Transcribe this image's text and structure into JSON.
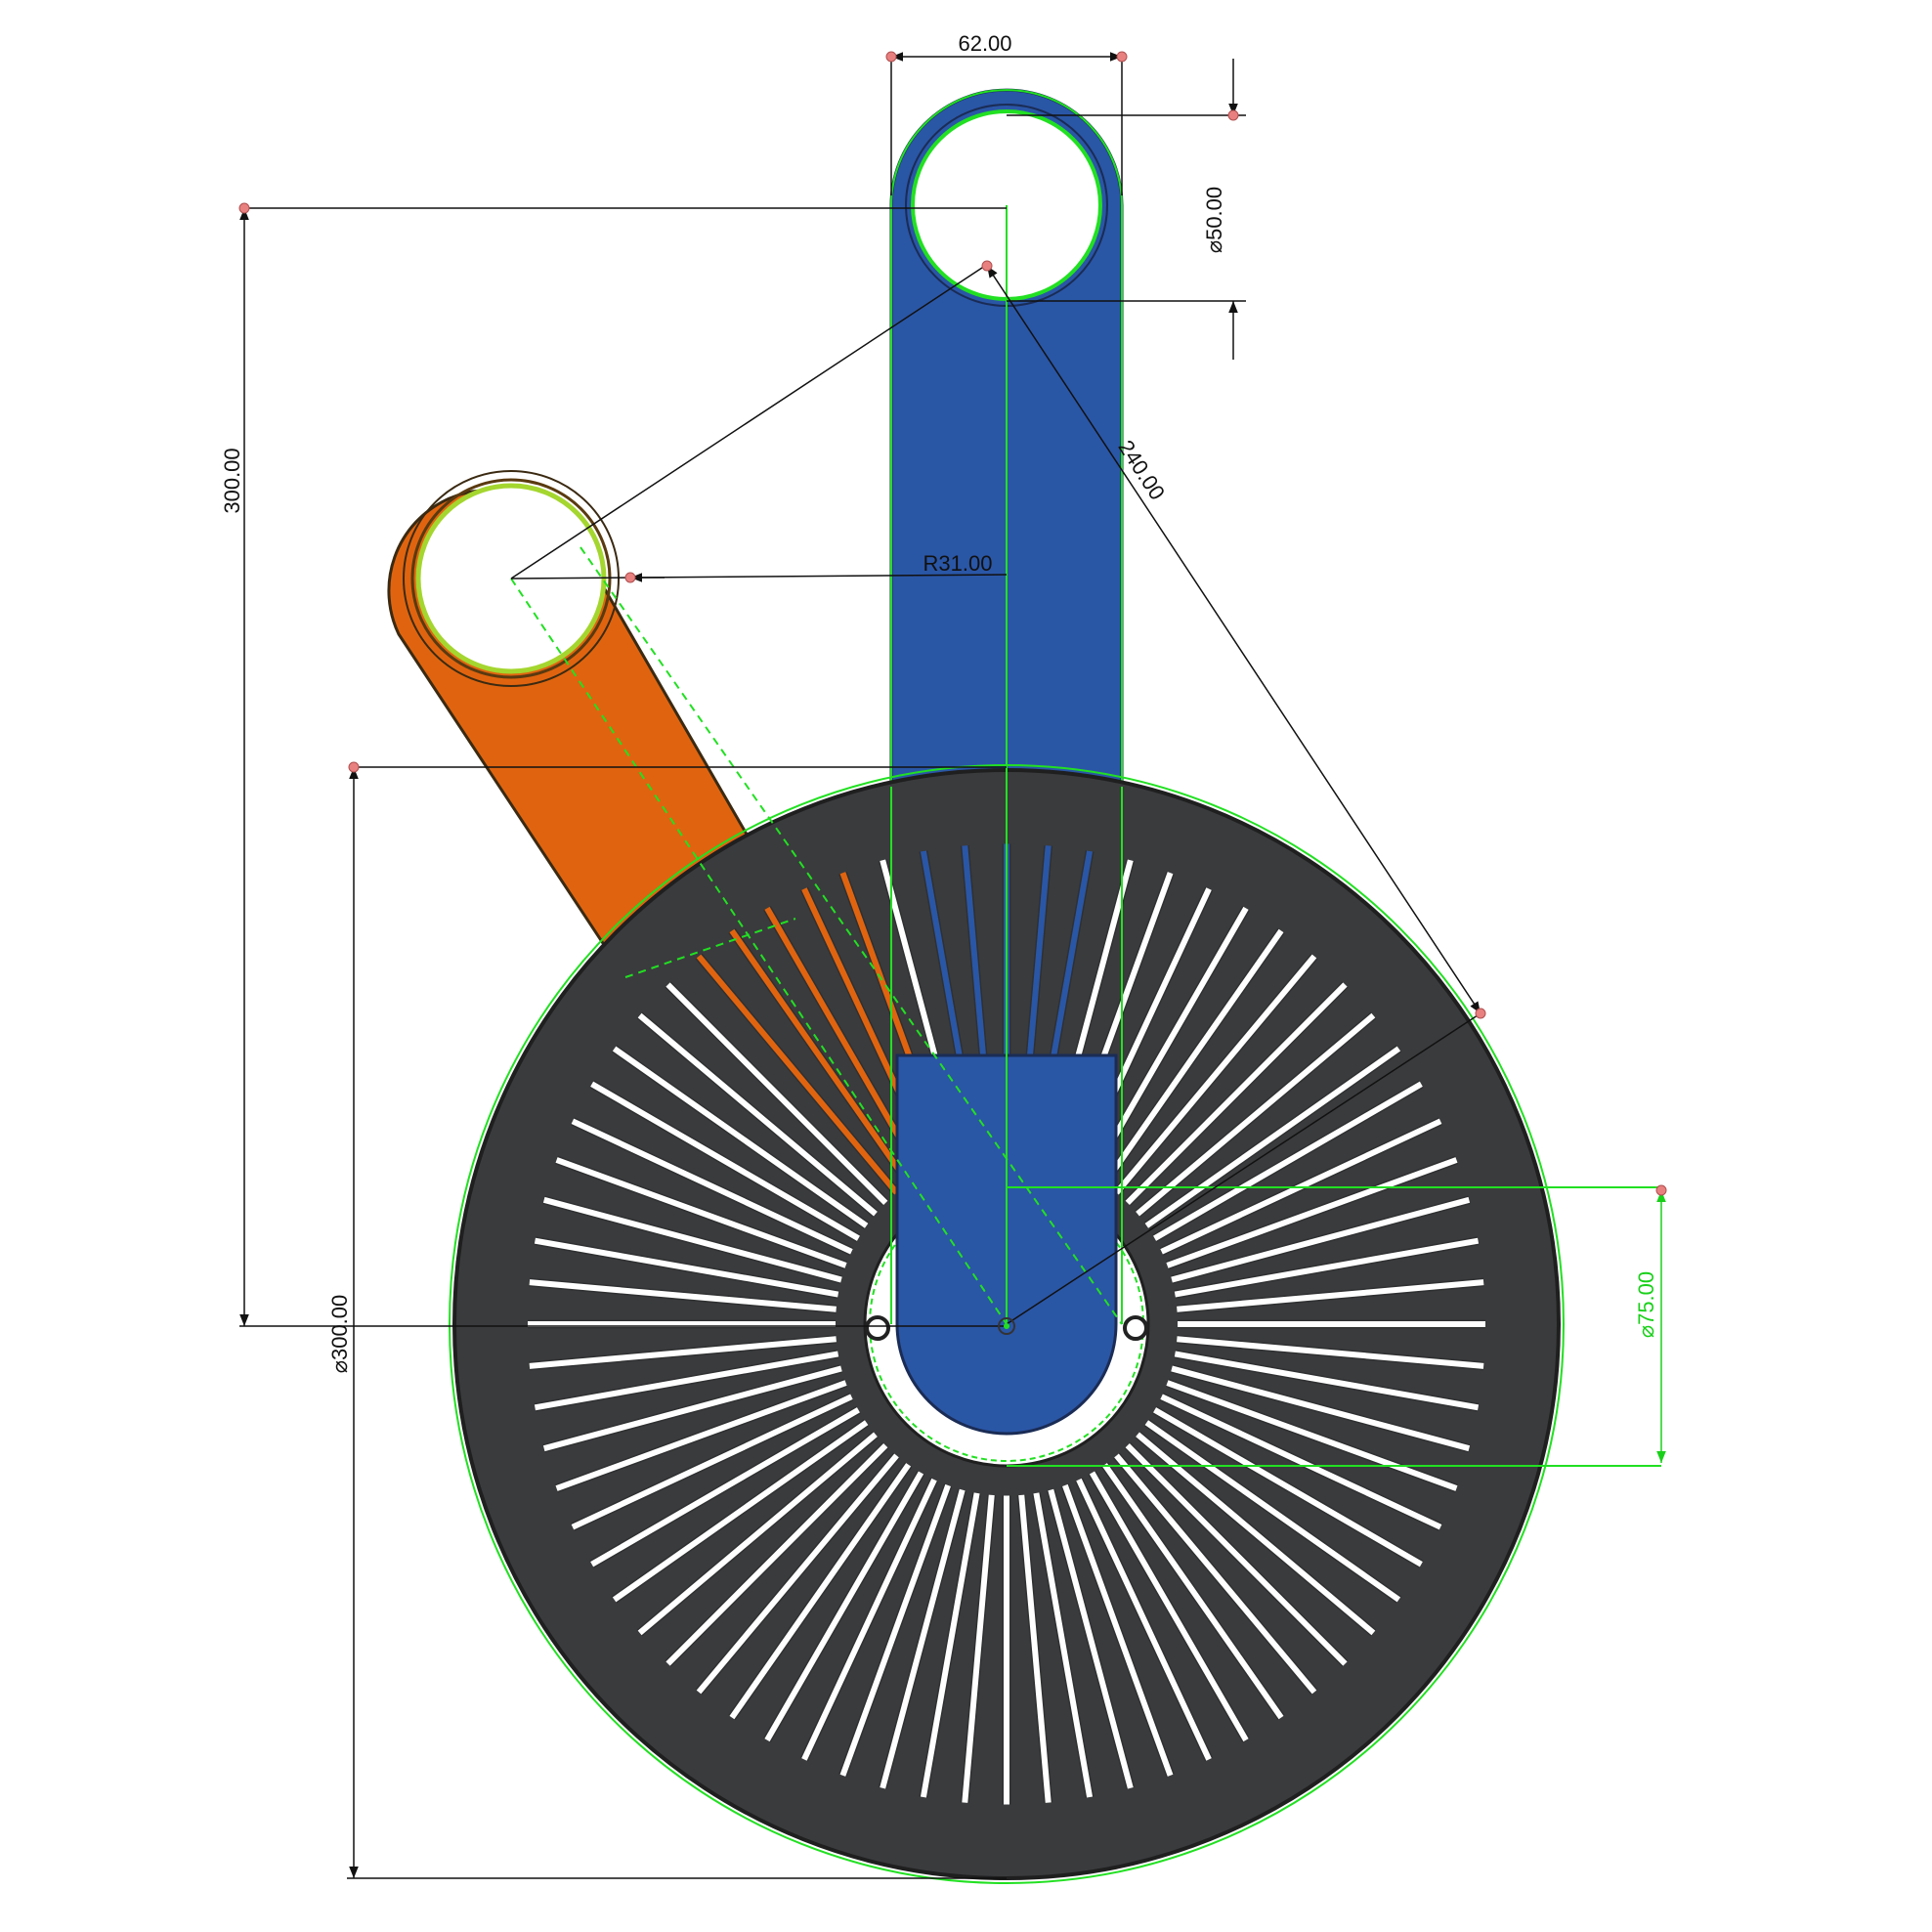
{
  "drawing": {
    "dimensions": {
      "arm_width": "62.00",
      "hole_diameter": "⌀50.00",
      "crank_radius": "R31.00",
      "vertical_offset": "300.00",
      "arm_length": "240.00",
      "disc_diameter": "⌀300.00",
      "center_hole_diameter": "⌀75.00"
    },
    "colors": {
      "background": "#ffffff",
      "disc": "#3a3b3d",
      "disc_edge": "#1f1f20",
      "blue_arm": "#2a56a6",
      "orange_arm": "#e0640f",
      "sketch_green": "#22e022",
      "dimension_line": "#111111",
      "point_marker": "#e88080"
    },
    "slot_count": 72
  }
}
